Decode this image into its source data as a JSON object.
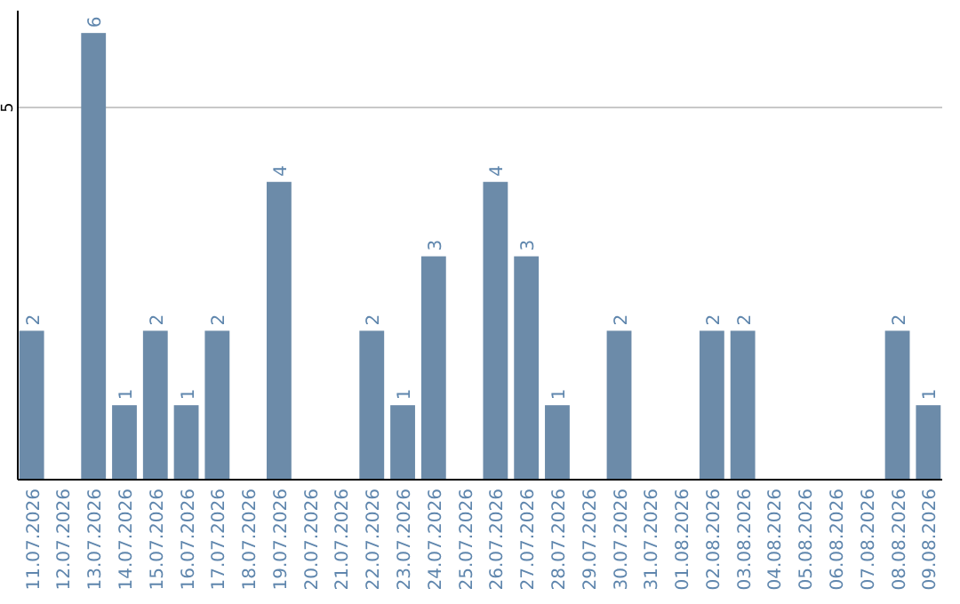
{
  "chart_data": {
    "type": "bar",
    "categories": [
      "11.07.2026",
      "12.07.2026",
      "13.07.2026",
      "14.07.2026",
      "15.07.2026",
      "16.07.2026",
      "17.07.2026",
      "18.07.2026",
      "19.07.2026",
      "20.07.2026",
      "21.07.2026",
      "22.07.2026",
      "23.07.2026",
      "24.07.2026",
      "25.07.2026",
      "26.07.2026",
      "27.07.2026",
      "28.07.2026",
      "29.07.2026",
      "30.07.2026",
      "31.07.2026",
      "01.08.2026",
      "02.08.2026",
      "03.08.2026",
      "04.08.2026",
      "05.08.2026",
      "06.08.2026",
      "07.08.2026",
      "08.08.2026",
      "09.08.2026"
    ],
    "values": [
      2,
      0,
      6,
      1,
      2,
      1,
      2,
      0,
      4,
      0,
      0,
      2,
      1,
      3,
      0,
      4,
      3,
      1,
      0,
      2,
      0,
      0,
      2,
      2,
      0,
      0,
      0,
      0,
      2,
      1
    ],
    "value_labels": [
      "2",
      null,
      "6",
      "1",
      "2",
      "1",
      "2",
      null,
      "4",
      null,
      null,
      "2",
      "1",
      "3",
      null,
      "4",
      "3",
      "1",
      null,
      "2",
      null,
      null,
      "2",
      "2",
      null,
      null,
      null,
      null,
      "2",
      "1"
    ],
    "color": "#6c8ba9",
    "ylim": [
      0,
      6.3
    ],
    "yticks": [
      5
    ],
    "grid": "y"
  }
}
